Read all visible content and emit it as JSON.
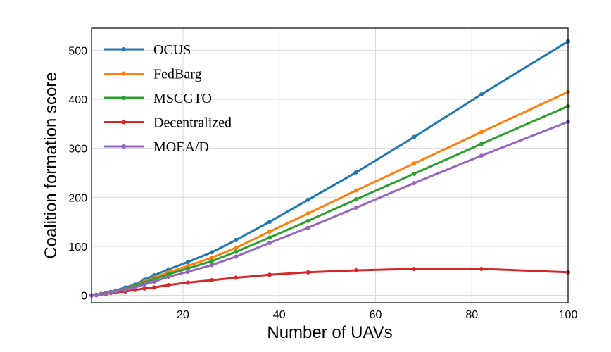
{
  "chart_data": {
    "type": "line",
    "xlabel": "Number of UAVs",
    "ylabel": "Coalition formation score",
    "xlim": [
      1,
      100
    ],
    "ylim": [
      -15,
      545
    ],
    "xticks": [
      20,
      40,
      60,
      80,
      100
    ],
    "yticks": [
      0,
      100,
      200,
      300,
      400,
      500
    ],
    "grid": true,
    "legend_position": "top-left",
    "x": [
      1,
      2,
      3,
      4,
      5,
      6,
      8,
      10,
      12,
      14,
      17,
      21,
      26,
      31,
      38,
      46,
      56,
      68,
      82,
      100
    ],
    "series": [
      {
        "name": "OCUS",
        "color": "#1f77b4",
        "values": [
          0,
          1,
          3,
          5,
          7,
          10,
          16,
          22,
          32,
          41,
          53,
          68,
          88,
          113,
          150,
          195,
          251,
          323,
          410,
          518
        ]
      },
      {
        "name": "FedBarg",
        "color": "#ff7f0e",
        "values": [
          0,
          1,
          3,
          5,
          7,
          9,
          14,
          20,
          28,
          36,
          47,
          60,
          77,
          97,
          130,
          167,
          214,
          269,
          333,
          415
        ]
      },
      {
        "name": "MSCGTO",
        "color": "#2ca02c",
        "values": [
          0,
          1,
          3,
          5,
          7,
          9,
          13,
          19,
          26,
          33,
          43,
          55,
          70,
          89,
          118,
          152,
          196,
          248,
          309,
          386
        ]
      },
      {
        "name": "Decentralized",
        "color": "#d62728",
        "values": [
          0,
          1,
          2,
          3,
          5,
          6,
          8,
          11,
          14,
          16,
          21,
          26,
          31,
          36,
          42,
          47,
          51,
          54,
          54,
          47
        ]
      },
      {
        "name": "MOEA/D",
        "color": "#9467bd",
        "values": [
          0,
          0,
          2,
          4,
          6,
          8,
          11,
          16,
          22,
          28,
          38,
          48,
          62,
          79,
          107,
          138,
          179,
          229,
          285,
          354
        ]
      }
    ]
  }
}
